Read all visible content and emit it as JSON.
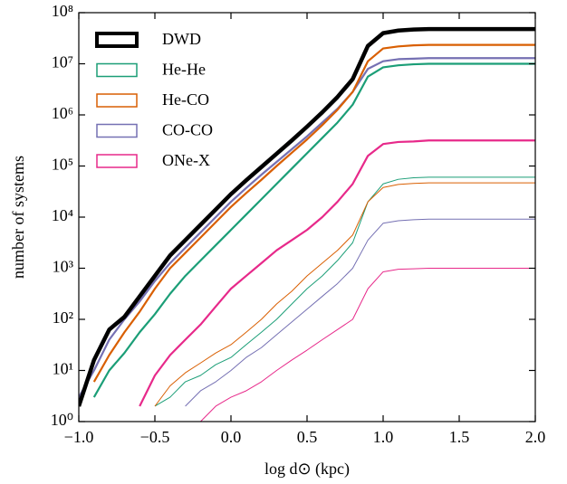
{
  "chart_data": {
    "type": "line",
    "xlabel": "log d⊙ (kpc)",
    "ylabel": "number of systems",
    "yscale": "log",
    "xlim": [
      -1,
      2
    ],
    "ylim": [
      1,
      100000000
    ],
    "xticks": [
      {
        "value": -1,
        "label": "−1.0"
      },
      {
        "value": -0.5,
        "label": "−0.5"
      },
      {
        "value": 0,
        "label": "0.0"
      },
      0.5,
      {
        "value": 1,
        "label": "1.0"
      },
      1.5,
      {
        "value": 2,
        "label": "2.0"
      }
    ],
    "yticks": [
      {
        "value": 1,
        "label": "10⁰"
      },
      {
        "value": 10,
        "label": "10¹"
      },
      {
        "value": 100,
        "label": "10²"
      },
      {
        "value": 1000,
        "label": "10³"
      },
      {
        "value": 10000,
        "label": "10⁴"
      },
      {
        "value": 100000,
        "label": "10⁵"
      },
      {
        "value": 1000000,
        "label": "10⁶"
      },
      {
        "value": 10000000,
        "label": "10⁷"
      },
      {
        "value": 100000000,
        "label": "10⁸"
      }
    ],
    "legend": "upper left",
    "x": [
      -1.0,
      -0.9,
      -0.8,
      -0.7,
      -0.6,
      -0.5,
      -0.4,
      -0.3,
      -0.2,
      -0.1,
      0.0,
      0.1,
      0.2,
      0.3,
      0.4,
      0.5,
      0.6,
      0.7,
      0.8,
      0.9,
      1.0,
      1.1,
      1.2,
      1.3,
      1.4,
      1.5,
      1.6,
      1.7,
      1.8,
      1.9,
      2.0
    ],
    "series": [
      {
        "name": "DWD",
        "color": "#000000",
        "values": [
          2,
          16,
          63,
          112,
          282,
          708,
          1778,
          3548,
          7079,
          14125,
          28184,
          52481,
          95499,
          173780,
          316228,
          588844,
          1122018,
          2238721,
          5011872,
          22387211,
          39810717,
          44668359,
          46773514,
          47863009,
          47863009,
          47863009,
          47863009,
          47863009,
          47863009,
          47863009,
          47863009
        ]
      },
      {
        "name": "He-He",
        "color": "#1b9e77",
        "values": [
          null,
          3,
          10,
          22,
          56,
          126,
          316,
          708,
          1413,
          2818,
          5623,
          11220,
          22387,
          44668,
          89125,
          177828,
          354813,
          707946,
          1584893,
          5623413,
          8511380,
          9332543,
          9772372,
          10000000,
          10000000,
          10000000,
          10000000,
          10000000,
          10000000,
          10000000,
          10000000
        ]
      },
      {
        "name": "He-CO",
        "color": "#d95f02",
        "values": [
          null,
          6,
          20,
          56,
          141,
          398,
          1000,
          1995,
          3981,
          7943,
          15849,
          29512,
          53703,
          100000,
          181970,
          331131,
          630957,
          1258925,
          2818383,
          11220185,
          19952623,
          21877616,
          22908677,
          23442288,
          23442288,
          23442288,
          23442288,
          23442288,
          23442288,
          23442288,
          23442288
        ]
      },
      {
        "name": "CO-CO",
        "color": "#7570b3",
        "values": [
          3,
          10,
          40,
          100,
          224,
          562,
          1259,
          2512,
          5012,
          10000,
          19953,
          37154,
          67608,
          120226,
          213796,
          380189,
          707946,
          1318257,
          2818383,
          7943282,
          11220185,
          12302688,
          12589254,
          12882496,
          12882496,
          12882496,
          12882496,
          12882496,
          12882496,
          12882496,
          12882496
        ]
      },
      {
        "name": "ONe-X",
        "color": "#e7298a",
        "values": [
          null,
          null,
          null,
          null,
          2,
          8,
          20,
          40,
          79,
          178,
          398,
          708,
          1259,
          2239,
          3548,
          5623,
          10000,
          19953,
          44668,
          158489,
          269153,
          295121,
          301995,
          316228,
          316228,
          316228,
          316228,
          316228,
          316228,
          316228,
          316228
        ]
      }
    ],
    "thin_series": [
      {
        "color": "#1b9e77",
        "values": [
          null,
          null,
          null,
          null,
          null,
          2,
          3,
          6,
          8,
          13,
          18,
          32,
          56,
          100,
          200,
          398,
          708,
          1413,
          3162,
          19953,
          44668,
          54954,
          58884,
          60256,
          60256,
          60256,
          60256,
          60256,
          60256,
          60256,
          60256
        ]
      },
      {
        "color": "#d95f02",
        "values": [
          null,
          null,
          null,
          null,
          null,
          2,
          5,
          9,
          14,
          22,
          32,
          56,
          100,
          200,
          355,
          708,
          1259,
          2239,
          4467,
          19953,
          38019,
          43652,
          45709,
          46774,
          46774,
          46774,
          46774,
          46774,
          46774,
          46774,
          46774
        ]
      },
      {
        "color": "#7570b3",
        "values": [
          null,
          null,
          null,
          null,
          null,
          null,
          null,
          2,
          4,
          6,
          10,
          18,
          28,
          50,
          89,
          158,
          282,
          501,
          1000,
          3548,
          7586,
          8511,
          8913,
          9120,
          9120,
          9120,
          9120,
          9120,
          9120,
          9120,
          9120
        ]
      },
      {
        "color": "#e7298a",
        "values": [
          null,
          null,
          null,
          null,
          null,
          null,
          null,
          null,
          1,
          2,
          3,
          4,
          6,
          10,
          16,
          25,
          40,
          63,
          100,
          398,
          851,
          955,
          977,
          1000,
          1000,
          1000,
          1000,
          1000,
          1000,
          1000,
          1000
        ]
      }
    ]
  }
}
